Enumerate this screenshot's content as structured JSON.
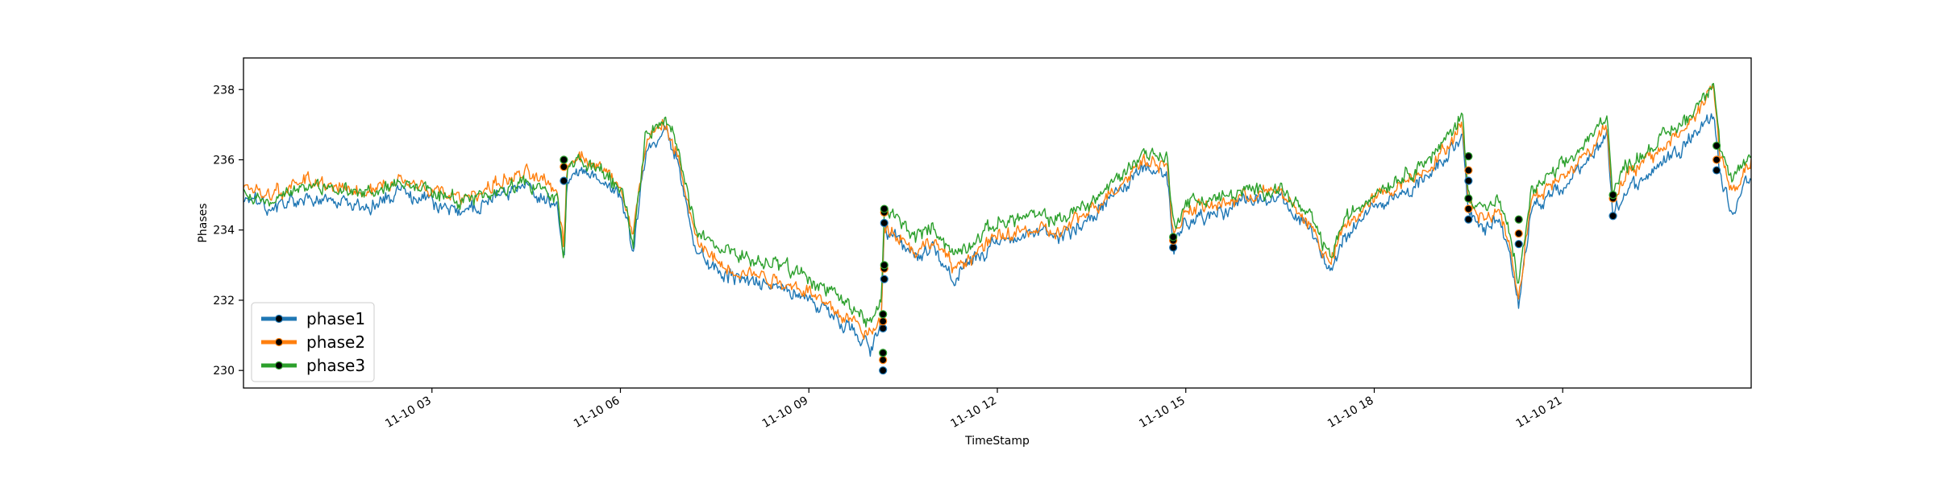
{
  "chart_data": {
    "type": "line",
    "xlabel": "TimeStamp",
    "ylabel": "Phases",
    "xlim": [
      "11-10 00:00",
      "24:00"
    ],
    "ylim": [
      229.5,
      238.9
    ],
    "x_ticks": [
      {
        "hour": 3,
        "label": "11-10 03"
      },
      {
        "hour": 6,
        "label": "11-10 06"
      },
      {
        "hour": 9,
        "label": "11-10 09"
      },
      {
        "hour": 12,
        "label": "11-10 12"
      },
      {
        "hour": 15,
        "label": "11-10 15"
      },
      {
        "hour": 18,
        "label": "11-10 18"
      },
      {
        "hour": 21,
        "label": "11-10 21"
      }
    ],
    "y_ticks": [
      230,
      232,
      234,
      236,
      238
    ],
    "legend": {
      "location": "lower left"
    },
    "series": [
      {
        "name": "phase1",
        "color": "#1f77b4",
        "key_points": [
          [
            0,
            234.8
          ],
          [
            0.5,
            234.6
          ],
          [
            1,
            235.0
          ],
          [
            1.5,
            234.8
          ],
          [
            2,
            234.7
          ],
          [
            2.5,
            235.1
          ],
          [
            3,
            234.7
          ],
          [
            3.5,
            234.5
          ],
          [
            4,
            234.9
          ],
          [
            4.5,
            235.2
          ],
          [
            5,
            234.7
          ],
          [
            5.1,
            233.0
          ],
          [
            5.15,
            235.4
          ],
          [
            5.3,
            235.8
          ],
          [
            5.5,
            235.6
          ],
          [
            5.8,
            235.3
          ],
          [
            6.0,
            235.0
          ],
          [
            6.1,
            234.4
          ],
          [
            6.2,
            233.3
          ],
          [
            6.4,
            236.2
          ],
          [
            6.7,
            236.8
          ],
          [
            6.9,
            236.0
          ],
          [
            7.2,
            233.5
          ],
          [
            7.6,
            232.8
          ],
          [
            8.0,
            232.6
          ],
          [
            8.3,
            232.5
          ],
          [
            8.6,
            232.3
          ],
          [
            9.0,
            232.1
          ],
          [
            9.3,
            231.6
          ],
          [
            9.7,
            231.2
          ],
          [
            10.0,
            230.6
          ],
          [
            10.15,
            231.1
          ],
          [
            10.2,
            233.9
          ],
          [
            10.4,
            233.7
          ],
          [
            10.7,
            233.2
          ],
          [
            11.0,
            233.5
          ],
          [
            11.3,
            232.6
          ],
          [
            11.7,
            233.2
          ],
          [
            12.0,
            233.6
          ],
          [
            12.5,
            233.9
          ],
          [
            13.0,
            233.8
          ],
          [
            13.5,
            234.4
          ],
          [
            14.0,
            235.2
          ],
          [
            14.3,
            235.8
          ],
          [
            14.7,
            235.6
          ],
          [
            14.8,
            233.5
          ],
          [
            15.0,
            234.3
          ],
          [
            15.5,
            234.5
          ],
          [
            16.0,
            234.8
          ],
          [
            16.5,
            234.9
          ],
          [
            17.0,
            233.9
          ],
          [
            17.3,
            232.8
          ],
          [
            17.5,
            233.8
          ],
          [
            18.0,
            234.7
          ],
          [
            18.5,
            235.1
          ],
          [
            19.0,
            235.8
          ],
          [
            19.4,
            236.7
          ],
          [
            19.5,
            234.4
          ],
          [
            19.8,
            234.0
          ],
          [
            20.0,
            234.4
          ],
          [
            20.2,
            233.0
          ],
          [
            20.3,
            231.9
          ],
          [
            20.5,
            234.6
          ],
          [
            21.0,
            235.2
          ],
          [
            21.5,
            236.1
          ],
          [
            21.7,
            236.8
          ],
          [
            21.8,
            234.4
          ],
          [
            22.0,
            235.1
          ],
          [
            22.5,
            235.8
          ],
          [
            23.0,
            236.6
          ],
          [
            23.4,
            237.3
          ],
          [
            23.5,
            235.6
          ],
          [
            23.7,
            234.5
          ],
          [
            24,
            235.6
          ]
        ]
      },
      {
        "name": "phase2",
        "color": "#ff7f0e",
        "key_points": [
          [
            0,
            235.2
          ],
          [
            0.5,
            235.0
          ],
          [
            1,
            235.5
          ],
          [
            1.5,
            235.2
          ],
          [
            2,
            235.1
          ],
          [
            2.5,
            235.5
          ],
          [
            3,
            235.1
          ],
          [
            3.5,
            234.9
          ],
          [
            4,
            235.3
          ],
          [
            4.5,
            235.6
          ],
          [
            5,
            235.1
          ],
          [
            5.1,
            233.5
          ],
          [
            5.15,
            235.8
          ],
          [
            5.3,
            236.2
          ],
          [
            5.5,
            236.0
          ],
          [
            5.8,
            235.6
          ],
          [
            6.0,
            235.3
          ],
          [
            6.1,
            234.7
          ],
          [
            6.2,
            233.8
          ],
          [
            6.4,
            236.5
          ],
          [
            6.7,
            237.0
          ],
          [
            6.9,
            236.2
          ],
          [
            7.2,
            233.7
          ],
          [
            7.6,
            233.0
          ],
          [
            8.0,
            232.8
          ],
          [
            8.3,
            232.7
          ],
          [
            8.6,
            232.5
          ],
          [
            9.0,
            232.3
          ],
          [
            9.3,
            231.8
          ],
          [
            9.7,
            231.4
          ],
          [
            10.0,
            231.0
          ],
          [
            10.15,
            231.4
          ],
          [
            10.2,
            234.2
          ],
          [
            10.4,
            233.9
          ],
          [
            10.7,
            233.4
          ],
          [
            11.0,
            233.7
          ],
          [
            11.3,
            232.9
          ],
          [
            11.7,
            233.4
          ],
          [
            12.0,
            233.8
          ],
          [
            12.5,
            234.0
          ],
          [
            13.0,
            233.9
          ],
          [
            13.5,
            234.6
          ],
          [
            14.0,
            235.4
          ],
          [
            14.3,
            236.0
          ],
          [
            14.7,
            235.9
          ],
          [
            14.8,
            233.8
          ],
          [
            15.0,
            234.6
          ],
          [
            15.5,
            234.7
          ],
          [
            16.0,
            235.0
          ],
          [
            16.5,
            235.1
          ],
          [
            17.0,
            234.1
          ],
          [
            17.3,
            233.0
          ],
          [
            17.5,
            234.0
          ],
          [
            18.0,
            234.9
          ],
          [
            18.5,
            235.4
          ],
          [
            19.0,
            236.0
          ],
          [
            19.4,
            237.0
          ],
          [
            19.5,
            234.8
          ],
          [
            19.8,
            234.3
          ],
          [
            20.0,
            234.6
          ],
          [
            20.2,
            233.2
          ],
          [
            20.3,
            232.1
          ],
          [
            20.5,
            234.9
          ],
          [
            21.0,
            235.5
          ],
          [
            21.5,
            236.4
          ],
          [
            21.7,
            237.1
          ],
          [
            21.8,
            234.9
          ],
          [
            22.0,
            235.5
          ],
          [
            22.5,
            236.2
          ],
          [
            23.0,
            237.0
          ],
          [
            23.4,
            238.1
          ],
          [
            23.5,
            236.2
          ],
          [
            23.7,
            235.0
          ],
          [
            24,
            236.0
          ]
        ]
      },
      {
        "name": "phase3",
        "color": "#2ca02c",
        "key_points": [
          [
            0,
            235.0
          ],
          [
            0.5,
            234.9
          ],
          [
            1,
            235.3
          ],
          [
            1.5,
            235.1
          ],
          [
            2,
            235.0
          ],
          [
            2.5,
            235.4
          ],
          [
            3,
            235.0
          ],
          [
            3.5,
            234.8
          ],
          [
            4,
            235.1
          ],
          [
            4.5,
            235.4
          ],
          [
            5,
            235.0
          ],
          [
            5.1,
            233.2
          ],
          [
            5.15,
            235.6
          ],
          [
            5.3,
            236.0
          ],
          [
            5.5,
            235.8
          ],
          [
            5.8,
            235.5
          ],
          [
            6.0,
            235.2
          ],
          [
            6.1,
            234.6
          ],
          [
            6.2,
            233.6
          ],
          [
            6.4,
            236.7
          ],
          [
            6.7,
            237.2
          ],
          [
            6.9,
            236.4
          ],
          [
            7.2,
            234.0
          ],
          [
            7.6,
            233.4
          ],
          [
            8.0,
            233.2
          ],
          [
            8.3,
            233.1
          ],
          [
            8.6,
            232.9
          ],
          [
            9.0,
            232.7
          ],
          [
            9.3,
            232.2
          ],
          [
            9.7,
            231.8
          ],
          [
            10.0,
            231.3
          ],
          [
            10.15,
            231.9
          ],
          [
            10.2,
            234.6
          ],
          [
            10.4,
            234.3
          ],
          [
            10.7,
            233.8
          ],
          [
            11.0,
            234.1
          ],
          [
            11.3,
            233.3
          ],
          [
            11.7,
            233.8
          ],
          [
            12.0,
            234.2
          ],
          [
            12.5,
            234.4
          ],
          [
            13.0,
            234.3
          ],
          [
            13.5,
            234.8
          ],
          [
            14.0,
            235.6
          ],
          [
            14.3,
            236.2
          ],
          [
            14.7,
            236.1
          ],
          [
            14.8,
            234.1
          ],
          [
            15.0,
            234.8
          ],
          [
            15.5,
            234.9
          ],
          [
            16.0,
            235.1
          ],
          [
            16.5,
            235.2
          ],
          [
            17.0,
            234.3
          ],
          [
            17.3,
            233.2
          ],
          [
            17.5,
            234.2
          ],
          [
            18.0,
            235.1
          ],
          [
            18.5,
            235.6
          ],
          [
            19.0,
            236.2
          ],
          [
            19.4,
            237.3
          ],
          [
            19.5,
            235.0
          ],
          [
            19.8,
            234.6
          ],
          [
            20.0,
            234.8
          ],
          [
            20.2,
            233.5
          ],
          [
            20.3,
            232.5
          ],
          [
            20.5,
            235.1
          ],
          [
            21.0,
            235.8
          ],
          [
            21.5,
            236.7
          ],
          [
            21.7,
            237.4
          ],
          [
            21.8,
            235.1
          ],
          [
            22.0,
            235.8
          ],
          [
            22.5,
            236.5
          ],
          [
            23.0,
            237.2
          ],
          [
            23.4,
            238.3
          ],
          [
            23.5,
            236.4
          ],
          [
            23.7,
            235.3
          ],
          [
            24,
            236.2
          ]
        ]
      }
    ],
    "markers": [
      {
        "hour": 5.1,
        "values": [
          235.4,
          235.8,
          236.0
        ]
      },
      {
        "hour": 10.18,
        "values": [
          230.0,
          230.3,
          230.5
        ]
      },
      {
        "hour": 10.18,
        "values": [
          231.2,
          231.4,
          231.6
        ]
      },
      {
        "hour": 10.2,
        "values": [
          232.6,
          232.9,
          233.0
        ]
      },
      {
        "hour": 10.2,
        "values": [
          234.2,
          234.5,
          234.6
        ]
      },
      {
        "hour": 14.8,
        "values": [
          233.5,
          233.7,
          233.8
        ]
      },
      {
        "hour": 19.5,
        "values": [
          234.3,
          234.6,
          234.9
        ]
      },
      {
        "hour": 19.5,
        "values": [
          235.4,
          235.7,
          236.1
        ]
      },
      {
        "hour": 20.3,
        "values": [
          233.6,
          233.9,
          234.3
        ]
      },
      {
        "hour": 21.8,
        "values": [
          234.4,
          234.9,
          235.0
        ]
      },
      {
        "hour": 23.45,
        "values": [
          235.7,
          236.0,
          236.4
        ]
      }
    ]
  }
}
